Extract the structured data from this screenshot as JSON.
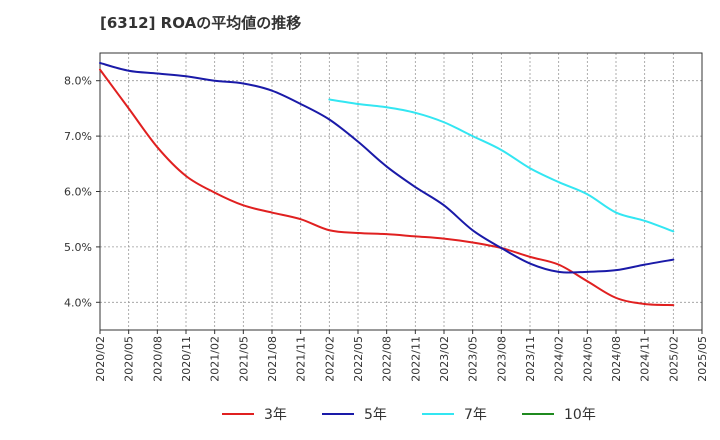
{
  "chart_data": {
    "type": "line",
    "title": "[6312]  ROAの平均値の推移",
    "xlabel": "",
    "ylabel": "",
    "ylim": [
      3.5,
      8.5
    ],
    "yticks": [
      4.0,
      5.0,
      6.0,
      7.0,
      8.0
    ],
    "ytick_labels": [
      "4.0%",
      "5.0%",
      "6.0%",
      "7.0%",
      "8.0%"
    ],
    "x_ticks": [
      "2020/02",
      "2020/05",
      "2020/08",
      "2020/11",
      "2021/02",
      "2021/05",
      "2021/08",
      "2021/11",
      "2022/02",
      "2022/05",
      "2022/08",
      "2022/11",
      "2023/02",
      "2023/05",
      "2023/08",
      "2023/11",
      "2024/02",
      "2024/05",
      "2024/08",
      "2024/11",
      "2025/02",
      "2025/05"
    ],
    "grid": true,
    "legend_position": "bottom",
    "series": [
      {
        "name": "3年",
        "color": "#e02020",
        "points": [
          [
            "2020/02",
            8.2
          ],
          [
            "2020/05",
            7.5
          ],
          [
            "2020/08",
            6.8
          ],
          [
            "2020/11",
            6.28
          ],
          [
            "2021/02",
            5.98
          ],
          [
            "2021/05",
            5.75
          ],
          [
            "2021/08",
            5.62
          ],
          [
            "2021/11",
            5.5
          ],
          [
            "2022/02",
            5.3
          ],
          [
            "2022/05",
            5.25
          ],
          [
            "2022/08",
            5.23
          ],
          [
            "2022/11",
            5.19
          ],
          [
            "2023/02",
            5.15
          ],
          [
            "2023/05",
            5.08
          ],
          [
            "2023/08",
            4.98
          ],
          [
            "2023/11",
            4.82
          ],
          [
            "2024/02",
            4.68
          ],
          [
            "2024/05",
            4.38
          ],
          [
            "2024/08",
            4.08
          ],
          [
            "2024/11",
            3.97
          ],
          [
            "2025/02",
            3.95
          ]
        ]
      },
      {
        "name": "5年",
        "color": "#1a1aa8",
        "points": [
          [
            "2020/02",
            8.32
          ],
          [
            "2020/05",
            8.18
          ],
          [
            "2020/08",
            8.13
          ],
          [
            "2020/11",
            8.08
          ],
          [
            "2021/02",
            8.0
          ],
          [
            "2021/05",
            7.95
          ],
          [
            "2021/08",
            7.82
          ],
          [
            "2021/11",
            7.58
          ],
          [
            "2022/02",
            7.3
          ],
          [
            "2022/05",
            6.9
          ],
          [
            "2022/08",
            6.45
          ],
          [
            "2022/11",
            6.08
          ],
          [
            "2023/02",
            5.75
          ],
          [
            "2023/05",
            5.3
          ],
          [
            "2023/08",
            4.98
          ],
          [
            "2023/11",
            4.7
          ],
          [
            "2024/02",
            4.55
          ],
          [
            "2024/05",
            4.55
          ],
          [
            "2024/08",
            4.58
          ],
          [
            "2024/11",
            4.68
          ],
          [
            "2025/02",
            4.77
          ]
        ]
      },
      {
        "name": "7年",
        "color": "#33e6f2",
        "points": [
          [
            "2022/02",
            7.66
          ],
          [
            "2022/05",
            7.58
          ],
          [
            "2022/08",
            7.52
          ],
          [
            "2022/11",
            7.42
          ],
          [
            "2023/02",
            7.25
          ],
          [
            "2023/05",
            7.0
          ],
          [
            "2023/08",
            6.75
          ],
          [
            "2023/11",
            6.42
          ],
          [
            "2024/02",
            6.17
          ],
          [
            "2024/05",
            5.95
          ],
          [
            "2024/08",
            5.62
          ],
          [
            "2024/11",
            5.47
          ],
          [
            "2025/02",
            5.28
          ]
        ]
      },
      {
        "name": "10年",
        "color": "#1f8a1f",
        "points": []
      }
    ]
  }
}
